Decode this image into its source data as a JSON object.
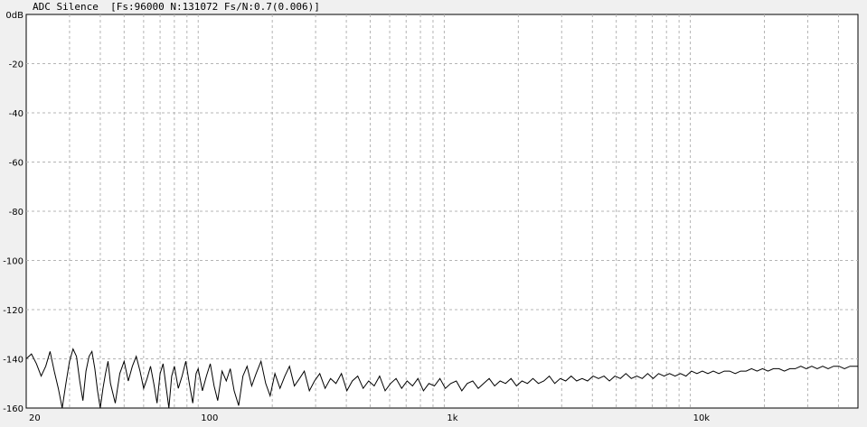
{
  "window": {
    "title": "ADC Silence  [Fs:96000 N:131072 Fs/N:0.7(0.006)]"
  },
  "chart_data": {
    "type": "line",
    "title": "ADC Silence  [Fs:96000 N:131072 Fs/N:0.7(0.006)]",
    "xscale": "log",
    "xlim": [
      20,
      48000
    ],
    "ylim": [
      -160,
      0
    ],
    "y_ticks": [
      0,
      -20,
      -40,
      -60,
      -80,
      -100,
      -120,
      -140,
      -160
    ],
    "y_tick_labels": [
      "0dB",
      "-20",
      "-40",
      "-60",
      "-80",
      "-100",
      "-120",
      "-140",
      "-160"
    ],
    "x_tick_labels": [
      {
        "value": 20,
        "label": "20"
      },
      {
        "value": 100,
        "label": "100"
      },
      {
        "value": 1000,
        "label": "1k"
      },
      {
        "value": 10000,
        "label": "10k"
      }
    ],
    "grid": true,
    "series": [
      {
        "color": "#000000",
        "points": [
          [
            20,
            -140
          ],
          [
            21,
            -138
          ],
          [
            22,
            -142
          ],
          [
            23,
            -147
          ],
          [
            24,
            -143
          ],
          [
            25,
            -137
          ],
          [
            26,
            -145
          ],
          [
            27,
            -152
          ],
          [
            28,
            -160
          ],
          [
            29,
            -150
          ],
          [
            30,
            -141
          ],
          [
            31,
            -136
          ],
          [
            32,
            -139
          ],
          [
            33,
            -149
          ],
          [
            34,
            -157
          ],
          [
            35,
            -145
          ],
          [
            36,
            -139
          ],
          [
            37,
            -137
          ],
          [
            38,
            -144
          ],
          [
            39,
            -153
          ],
          [
            40,
            -160
          ],
          [
            41,
            -152
          ],
          [
            42,
            -146
          ],
          [
            43,
            -141
          ],
          [
            44,
            -150
          ],
          [
            46,
            -158
          ],
          [
            48,
            -146
          ],
          [
            50,
            -141
          ],
          [
            52,
            -149
          ],
          [
            54,
            -143
          ],
          [
            56,
            -139
          ],
          [
            58,
            -145
          ],
          [
            60,
            -152
          ],
          [
            62,
            -148
          ],
          [
            64,
            -143
          ],
          [
            66,
            -150
          ],
          [
            68,
            -158
          ],
          [
            70,
            -146
          ],
          [
            72,
            -142
          ],
          [
            74,
            -151
          ],
          [
            76,
            -160
          ],
          [
            78,
            -147
          ],
          [
            80,
            -143
          ],
          [
            83,
            -152
          ],
          [
            86,
            -147
          ],
          [
            89,
            -141
          ],
          [
            92,
            -150
          ],
          [
            95,
            -158
          ],
          [
            98,
            -146
          ],
          [
            100,
            -144
          ],
          [
            104,
            -153
          ],
          [
            108,
            -147
          ],
          [
            112,
            -142
          ],
          [
            116,
            -151
          ],
          [
            120,
            -157
          ],
          [
            125,
            -145
          ],
          [
            130,
            -149
          ],
          [
            135,
            -144
          ],
          [
            140,
            -153
          ],
          [
            146,
            -159
          ],
          [
            152,
            -147
          ],
          [
            158,
            -143
          ],
          [
            165,
            -151
          ],
          [
            172,
            -146
          ],
          [
            180,
            -141
          ],
          [
            188,
            -150
          ],
          [
            196,
            -155
          ],
          [
            205,
            -146
          ],
          [
            215,
            -152
          ],
          [
            225,
            -147
          ],
          [
            235,
            -143
          ],
          [
            246,
            -151
          ],
          [
            258,
            -148
          ],
          [
            270,
            -145
          ],
          [
            283,
            -153
          ],
          [
            297,
            -149
          ],
          [
            312,
            -146
          ],
          [
            328,
            -152
          ],
          [
            345,
            -148
          ],
          [
            363,
            -150
          ],
          [
            382,
            -146
          ],
          [
            402,
            -153
          ],
          [
            423,
            -149
          ],
          [
            445,
            -147
          ],
          [
            468,
            -152
          ],
          [
            493,
            -149
          ],
          [
            519,
            -151
          ],
          [
            546,
            -147
          ],
          [
            575,
            -153
          ],
          [
            605,
            -150
          ],
          [
            637,
            -148
          ],
          [
            671,
            -152
          ],
          [
            706,
            -149
          ],
          [
            743,
            -151
          ],
          [
            782,
            -148
          ],
          [
            823,
            -153
          ],
          [
            866,
            -150
          ],
          [
            912,
            -151
          ],
          [
            960,
            -148
          ],
          [
            1010,
            -152
          ],
          [
            1063,
            -150
          ],
          [
            1119,
            -149
          ],
          [
            1178,
            -153
          ],
          [
            1240,
            -150
          ],
          [
            1305,
            -149
          ],
          [
            1374,
            -152
          ],
          [
            1446,
            -150
          ],
          [
            1522,
            -148
          ],
          [
            1602,
            -151
          ],
          [
            1686,
            -149
          ],
          [
            1775,
            -150
          ],
          [
            1868,
            -148
          ],
          [
            1966,
            -151
          ],
          [
            2069,
            -149
          ],
          [
            2178,
            -150
          ],
          [
            2292,
            -148
          ],
          [
            2412,
            -150
          ],
          [
            2539,
            -149
          ],
          [
            2672,
            -147
          ],
          [
            2812,
            -150
          ],
          [
            2960,
            -148
          ],
          [
            3115,
            -149
          ],
          [
            3279,
            -147
          ],
          [
            3451,
            -149
          ],
          [
            3632,
            -148
          ],
          [
            3823,
            -149
          ],
          [
            4024,
            -147
          ],
          [
            4235,
            -148
          ],
          [
            4457,
            -147
          ],
          [
            4691,
            -149
          ],
          [
            4937,
            -147
          ],
          [
            5196,
            -148
          ],
          [
            5469,
            -146
          ],
          [
            5756,
            -148
          ],
          [
            6058,
            -147
          ],
          [
            6376,
            -148
          ],
          [
            6711,
            -146
          ],
          [
            7063,
            -148
          ],
          [
            7434,
            -146
          ],
          [
            7824,
            -147
          ],
          [
            8235,
            -146
          ],
          [
            8667,
            -147
          ],
          [
            9122,
            -146
          ],
          [
            9601,
            -147
          ],
          [
            10105,
            -145
          ],
          [
            10635,
            -146
          ],
          [
            11193,
            -145
          ],
          [
            11781,
            -146
          ],
          [
            12399,
            -145
          ],
          [
            13050,
            -146
          ],
          [
            13735,
            -145
          ],
          [
            14456,
            -145
          ],
          [
            15215,
            -146
          ],
          [
            16013,
            -145
          ],
          [
            16854,
            -145
          ],
          [
            17739,
            -144
          ],
          [
            18670,
            -145
          ],
          [
            19650,
            -144
          ],
          [
            20681,
            -145
          ],
          [
            21767,
            -144
          ],
          [
            22910,
            -144
          ],
          [
            24112,
            -145
          ],
          [
            25378,
            -144
          ],
          [
            26710,
            -144
          ],
          [
            28112,
            -143
          ],
          [
            29588,
            -144
          ],
          [
            31141,
            -143
          ],
          [
            32776,
            -144
          ],
          [
            34497,
            -143
          ],
          [
            36308,
            -144
          ],
          [
            38214,
            -143
          ],
          [
            40220,
            -143
          ],
          [
            42331,
            -144
          ],
          [
            44553,
            -143
          ],
          [
            46892,
            -143
          ],
          [
            48000,
            -143
          ]
        ]
      }
    ]
  }
}
